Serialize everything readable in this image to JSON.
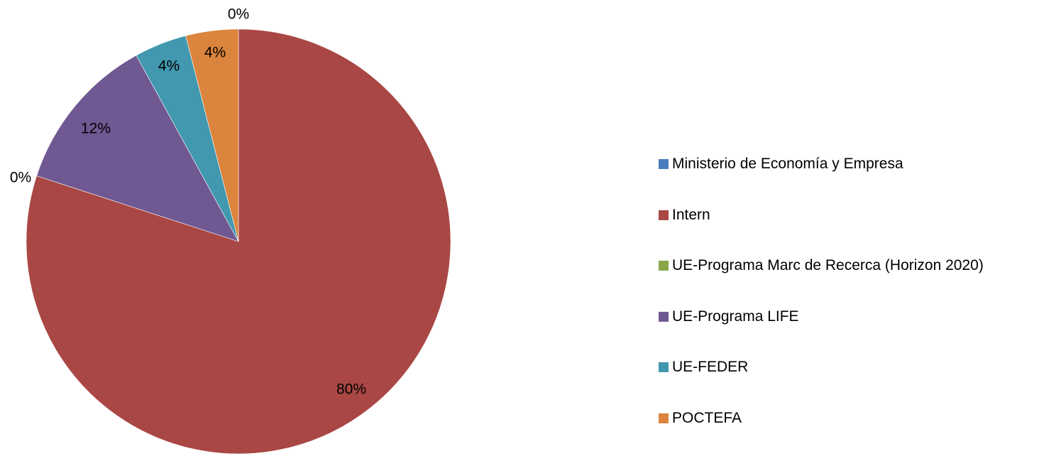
{
  "chart_data": {
    "type": "pie",
    "categories": [
      "Ministerio de Economía y Empresa",
      "Intern",
      "UE-Programa Marc de Recerca (Horizon 2020)",
      "UE-Programa LIFE",
      "UE-FEDER",
      "POCTEFA"
    ],
    "values": [
      0,
      80,
      0,
      12,
      4,
      4
    ],
    "data_labels": [
      "0%",
      "80%",
      "0%",
      "12%",
      "4%",
      "4%"
    ],
    "colors": [
      "#4A7EBB",
      "#A94744",
      "#8AA64A",
      "#705892",
      "#4198AF",
      "#DB843D"
    ],
    "legend_position": "right",
    "title": ""
  }
}
